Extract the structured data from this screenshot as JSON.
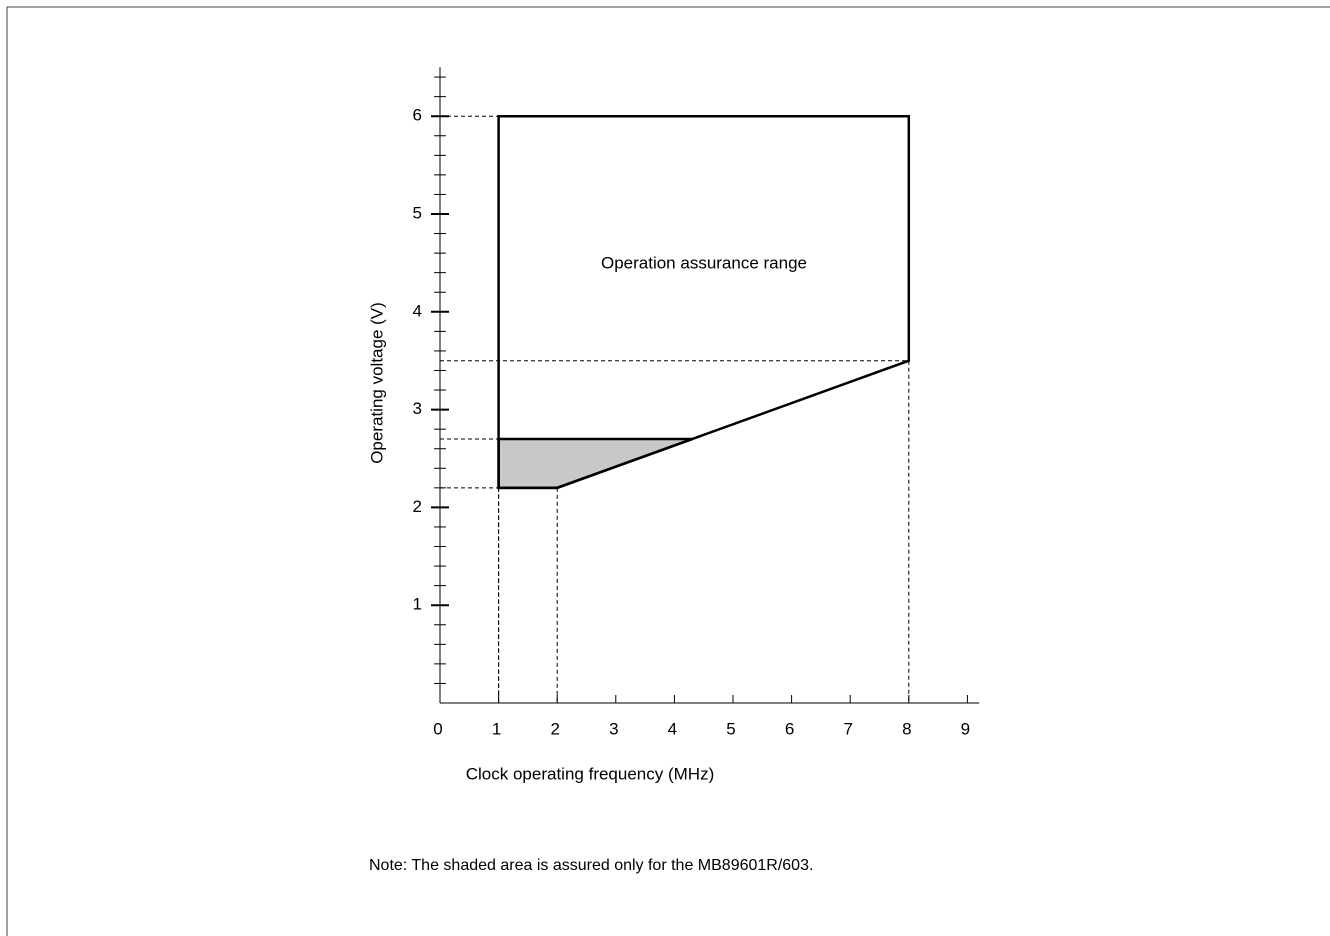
{
  "chart_data": {
    "type": "region",
    "xlabel": "Clock operating frequency (MHz)",
    "ylabel": "Operating voltage (V)",
    "annotation": "Operation assurance range",
    "note": "Note:  The shaded area is assured only for the MB89601R/603.",
    "xlim": [
      0,
      9.2
    ],
    "ylim": [
      0,
      6.5
    ],
    "xticks": [
      0,
      1,
      2,
      3,
      4,
      5,
      6,
      7,
      8,
      9
    ],
    "yticks": [
      1,
      2,
      3,
      4,
      5,
      6
    ],
    "yminorticks": [
      0.2,
      0.4,
      0.6,
      0.8,
      1.2,
      1.4,
      1.6,
      1.8,
      2.2,
      2.4,
      2.6,
      2.8,
      3.2,
      3.4,
      3.6,
      3.8,
      4.2,
      4.4,
      4.6,
      4.8,
      5.2,
      5.4,
      5.6,
      5.8,
      6.2,
      6.4
    ],
    "series": [
      {
        "color": "#c8c8c8",
        "x": [
          1,
          4.31,
          2,
          1
        ],
        "values": [
          2.7,
          2.7,
          2.2,
          2.2
        ]
      },
      {
        "color": "none",
        "x": [
          1,
          8,
          8,
          2,
          1
        ],
        "values": [
          6,
          6,
          3.5,
          2.2,
          2.2
        ]
      }
    ],
    "guides": [
      {
        "x": 1,
        "y": 6
      },
      {
        "x": 8,
        "y": 3.5
      },
      {
        "x": 1,
        "y": 2.7
      },
      {
        "x": 2,
        "y": 2.2
      }
    ]
  }
}
